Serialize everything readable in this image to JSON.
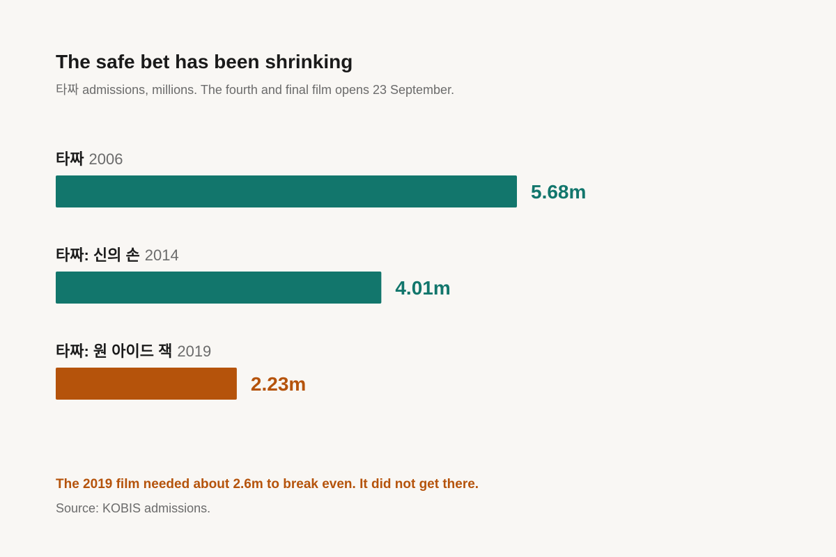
{
  "chart_data": {
    "type": "bar",
    "orientation": "horizontal",
    "title": "The safe bet has been shrinking",
    "subtitle": "타짜 admissions, millions. The fourth and final film opens 23 September.",
    "categories": [
      "타짜",
      "타짜: 신의 손",
      "타짜: 원 아이드 잭"
    ],
    "years": [
      "2006",
      "2014",
      "2019"
    ],
    "values": [
      5.68,
      4.01,
      2.23
    ],
    "value_labels": [
      "5.68m",
      "4.01m",
      "2.23m"
    ],
    "colors": [
      "#12766c",
      "#12766c",
      "#b5530b"
    ],
    "annotation": "The 2019 film needed about 2.6m to break even. It did not get there.",
    "annotation_color": "#b5530b",
    "source": "Source: KOBIS admissions."
  }
}
